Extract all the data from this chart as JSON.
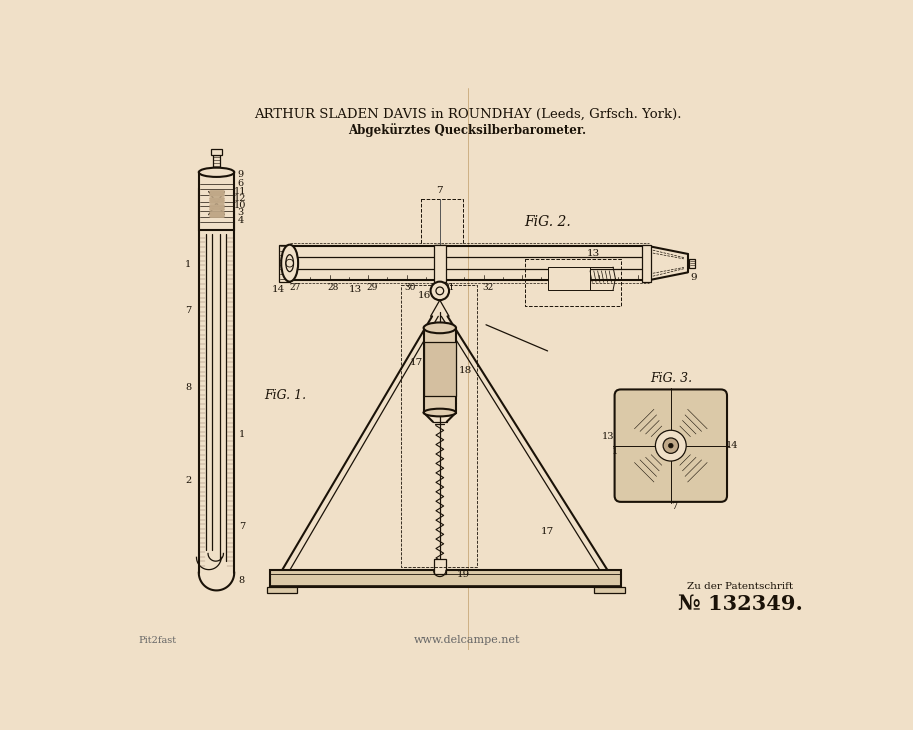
{
  "bg_color": "#f0e0c8",
  "line_color": "#1a1208",
  "title1": "ARTHUR SLADEN DAVIS in ROUNDHAY (Leeds, Grfsch. York).",
  "title2": "Abgekürztes Quecksilberbarometer.",
  "patent_label": "Zu der Patentschrift",
  "patent_number": "№ 132349.",
  "watermark": "www.delcampe.net",
  "source_label": "Pit2fast",
  "fig1_label": "FiG. 1.",
  "fig2_label": "FiG. 2.",
  "fig3_label": "FiG. 3.",
  "crease_color": "#c8a878"
}
